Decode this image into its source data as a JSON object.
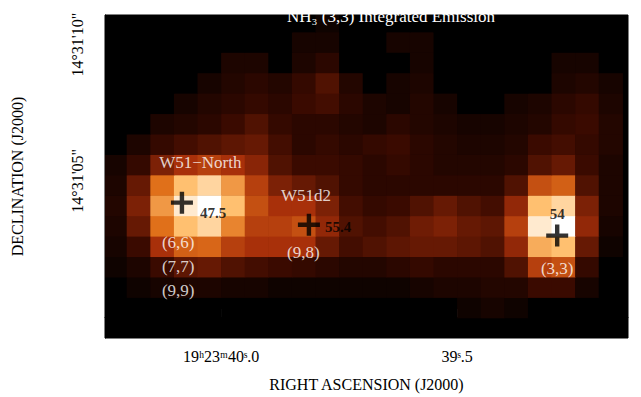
{
  "chart_data": {
    "type": "heatmap",
    "title": "NH₃ (3,3) Integrated Emission",
    "x_label": "RIGHT ASCENSION (J2000)",
    "y_label": "DECLINATION (J2000)",
    "xlim": [
      40.246,
      39.138
    ],
    "ylim": [
      -0.77,
      11.09
    ],
    "xticks": [
      {
        "value": 40.0,
        "label": "19ʰ23ᵐ40ˢ.0"
      },
      {
        "value": 39.5,
        "label": "39ˢ.5"
      }
    ],
    "yticks": [
      {
        "value": 5,
        "label": "14°31'05\""
      },
      {
        "value": 10,
        "label": "14°31'10\""
      }
    ],
    "value_range": [
      0,
      100
    ],
    "x": [
      40.225,
      40.175,
      40.125,
      40.075,
      40.025,
      39.975,
      39.925,
      39.875,
      39.825,
      39.775,
      39.725,
      39.675,
      39.625,
      39.575,
      39.525,
      39.475,
      39.425,
      39.375,
      39.325,
      39.275,
      39.225,
      39.175
    ],
    "y": [
      -0.4,
      0.35,
      1.1,
      1.85,
      2.6,
      3.35,
      4.1,
      4.85,
      5.6,
      6.35,
      7.1,
      7.85,
      8.6,
      9.35,
      10.1,
      10.85
    ],
    "z": [
      [
        0,
        0,
        0,
        0,
        0,
        0,
        0,
        0,
        0,
        0,
        0,
        0,
        0,
        0,
        0,
        0,
        0,
        0,
        0,
        0,
        0,
        0
      ],
      [
        0,
        0,
        0,
        0,
        0,
        0,
        0,
        0,
        0,
        0,
        0,
        0,
        0,
        0,
        0,
        5,
        8,
        5,
        0,
        0,
        0,
        0
      ],
      [
        0,
        5,
        8,
        10,
        10,
        8,
        8,
        5,
        5,
        5,
        5,
        5,
        5,
        8,
        10,
        10,
        12,
        12,
        20,
        20,
        8,
        0
      ],
      [
        5,
        10,
        20,
        28,
        30,
        25,
        22,
        20,
        18,
        15,
        12,
        12,
        15,
        18,
        15,
        15,
        15,
        25,
        50,
        55,
        18,
        0
      ],
      [
        8,
        20,
        45,
        60,
        62,
        50,
        45,
        45,
        45,
        30,
        22,
        25,
        28,
        30,
        30,
        28,
        25,
        40,
        80,
        85,
        30,
        5
      ],
      [
        10,
        30,
        65,
        85,
        90,
        70,
        50,
        50,
        55,
        40,
        25,
        22,
        25,
        32,
        35,
        30,
        28,
        50,
        95,
        100,
        40,
        8
      ],
      [
        12,
        35,
        75,
        95,
        100,
        85,
        55,
        45,
        45,
        35,
        22,
        18,
        20,
        25,
        30,
        25,
        22,
        40,
        85,
        90,
        35,
        10
      ],
      [
        10,
        30,
        65,
        85,
        90,
        75,
        50,
        35,
        30,
        25,
        18,
        15,
        15,
        15,
        15,
        15,
        15,
        25,
        55,
        60,
        25,
        10
      ],
      [
        8,
        18,
        35,
        45,
        50,
        45,
        38,
        25,
        20,
        20,
        18,
        15,
        18,
        15,
        12,
        12,
        12,
        15,
        25,
        30,
        20,
        10
      ],
      [
        0,
        10,
        18,
        22,
        25,
        28,
        30,
        22,
        15,
        18,
        15,
        18,
        20,
        15,
        12,
        10,
        10,
        12,
        20,
        22,
        18,
        12
      ],
      [
        0,
        0,
        10,
        12,
        15,
        20,
        25,
        18,
        15,
        15,
        12,
        10,
        15,
        12,
        10,
        8,
        8,
        10,
        12,
        18,
        20,
        12
      ],
      [
        0,
        0,
        0,
        8,
        12,
        15,
        18,
        15,
        20,
        22,
        15,
        10,
        8,
        12,
        8,
        0,
        0,
        8,
        10,
        15,
        18,
        10
      ],
      [
        0,
        0,
        0,
        0,
        8,
        12,
        15,
        12,
        18,
        25,
        12,
        0,
        8,
        10,
        0,
        0,
        0,
        0,
        0,
        10,
        12,
        8
      ],
      [
        0,
        0,
        0,
        0,
        0,
        10,
        10,
        0,
        10,
        15,
        0,
        0,
        0,
        8,
        0,
        0,
        0,
        0,
        0,
        8,
        8,
        0
      ],
      [
        0,
        0,
        0,
        0,
        0,
        0,
        0,
        0,
        8,
        8,
        0,
        0,
        8,
        8,
        0,
        0,
        0,
        0,
        0,
        0,
        0,
        0
      ],
      [
        0,
        0,
        0,
        0,
        0,
        0,
        0,
        0,
        0,
        5,
        0,
        0,
        0,
        0,
        0,
        0,
        0,
        0,
        0,
        0,
        0,
        0
      ]
    ],
    "markers": [
      {
        "x": 40.083,
        "y": 4.2,
        "value": 47.5
      },
      {
        "x": 39.814,
        "y": 3.39,
        "value": 55.4
      },
      {
        "x": 39.288,
        "y": 2.99,
        "value": 54
      }
    ],
    "annotations": [
      {
        "text": "W51−North",
        "x": 40.044,
        "y": 5.66
      },
      {
        "text": "W51d2",
        "x": 39.82,
        "y": 4.47
      },
      {
        "text": "(6,6)",
        "x": 40.091,
        "y": 2.74
      },
      {
        "text": "(7,7)",
        "x": 40.091,
        "y": 1.86
      },
      {
        "text": "(9,9)",
        "x": 40.091,
        "y": 0.99
      },
      {
        "text": "(9,8)",
        "x": 39.826,
        "y": 2.37
      },
      {
        "text": "(3,3)",
        "x": 39.288,
        "y": 1.79
      }
    ]
  }
}
